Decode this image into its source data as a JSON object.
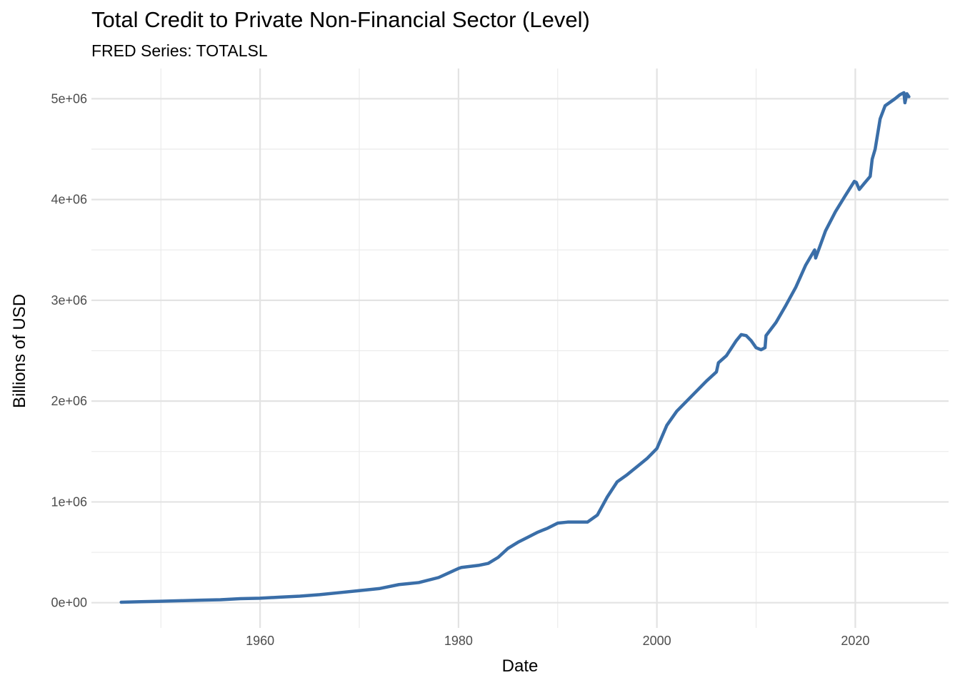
{
  "chart_data": {
    "type": "line",
    "title": "Total Credit to Private Non-Financial Sector (Level)",
    "subtitle": "FRED Series: TOTALSL",
    "xlabel": "Date",
    "ylabel": "Billions of USD",
    "xlim": [
      1943,
      2029.4
    ],
    "ylim": [
      -250000,
      5300000
    ],
    "x_ticks": [
      1960,
      1980,
      2000,
      2020
    ],
    "x_tick_labels": [
      "1960",
      "1980",
      "2000",
      "2020"
    ],
    "x_minor_ticks": [
      1950,
      1970,
      1990,
      2010
    ],
    "y_ticks": [
      0,
      1000000,
      2000000,
      3000000,
      4000000,
      5000000
    ],
    "y_tick_labels": [
      "0e+00",
      "1e+06",
      "2e+06",
      "3e+06",
      "4e+06",
      "5e+06"
    ],
    "y_minor_ticks": [
      500000,
      1500000,
      2500000,
      3500000,
      4500000
    ],
    "grid": true,
    "legend": "none",
    "series": [
      {
        "name": "TOTALSL",
        "color": "#3a6ea8",
        "x": [
          1946.0,
          1948.0,
          1950.0,
          1952.0,
          1954.0,
          1956.0,
          1958.0,
          1960.0,
          1962.0,
          1964.0,
          1966.0,
          1968.0,
          1970.0,
          1972.0,
          1974.0,
          1975.0,
          1976.0,
          1978.0,
          1980.0,
          1980.3,
          1982.0,
          1983.0,
          1984.0,
          1985.0,
          1986.0,
          1987.0,
          1988.0,
          1989.0,
          1990.0,
          1991.0,
          1992.0,
          1993.0,
          1994.0,
          1995.0,
          1996.0,
          1997.0,
          1998.0,
          1999.0,
          2000.0,
          2001.0,
          2002.0,
          2003.0,
          2004.0,
          2005.0,
          2006.0,
          2006.2,
          2007.0,
          2008.0,
          2008.5,
          2009.0,
          2009.5,
          2010.0,
          2010.5,
          2010.9,
          2011.0,
          2012.0,
          2013.0,
          2014.0,
          2015.0,
          2015.9,
          2016.0,
          2017.0,
          2018.0,
          2019.0,
          2019.9,
          2020.1,
          2020.4,
          2020.9,
          2021.5,
          2021.7,
          2022.0,
          2022.5,
          2023.0,
          2024.0,
          2024.5,
          2024.9,
          2025.0,
          2025.2,
          2025.4
        ],
        "values": [
          5000,
          10000,
          15000,
          20000,
          25000,
          30000,
          40000,
          45000,
          55000,
          65000,
          80000,
          100000,
          120000,
          140000,
          180000,
          190000,
          200000,
          250000,
          340000,
          350000,
          370000,
          390000,
          450000,
          540000,
          600000,
          650000,
          700000,
          740000,
          790000,
          800000,
          800000,
          800000,
          870000,
          1050000,
          1200000,
          1270000,
          1350000,
          1430000,
          1530000,
          1760000,
          1900000,
          2000000,
          2100000,
          2200000,
          2290000,
          2380000,
          2450000,
          2600000,
          2660000,
          2650000,
          2600000,
          2530000,
          2510000,
          2530000,
          2650000,
          2780000,
          2950000,
          3130000,
          3350000,
          3500000,
          3420000,
          3690000,
          3880000,
          4040000,
          4180000,
          4170000,
          4100000,
          4160000,
          4230000,
          4400000,
          4500000,
          4800000,
          4930000,
          5000000,
          5040000,
          5060000,
          4960000,
          5050000,
          5020000
        ]
      }
    ]
  }
}
